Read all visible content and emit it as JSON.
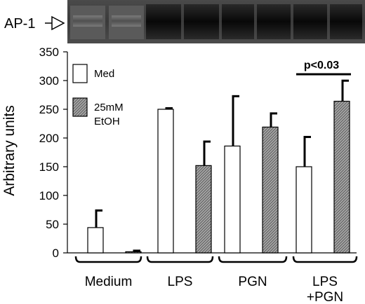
{
  "gel": {
    "label": "AP-1"
  },
  "chart_data": {
    "type": "bar",
    "title": "",
    "xlabel": "",
    "ylabel": "Arbitrary units",
    "ylim": [
      0,
      350
    ],
    "yticks": [
      0,
      50,
      100,
      150,
      200,
      250,
      300,
      350
    ],
    "grid": false,
    "legend_placement": "top-left",
    "categories": [
      "Medium",
      "LPS",
      "PGN",
      "LPS\n+PGN"
    ],
    "series": [
      {
        "name": "Med",
        "pattern": "open",
        "values": [
          44,
          250,
          186,
          150
        ],
        "errors": [
          31,
          3,
          88,
          53
        ]
      },
      {
        "name": "25mM EtOH",
        "pattern": "hatched",
        "values": [
          2,
          152,
          219,
          264
        ],
        "errors": [
          3,
          43,
          25,
          37
        ]
      }
    ],
    "annotations": [
      {
        "text": "p<0.03",
        "category_index": 3
      }
    ]
  }
}
